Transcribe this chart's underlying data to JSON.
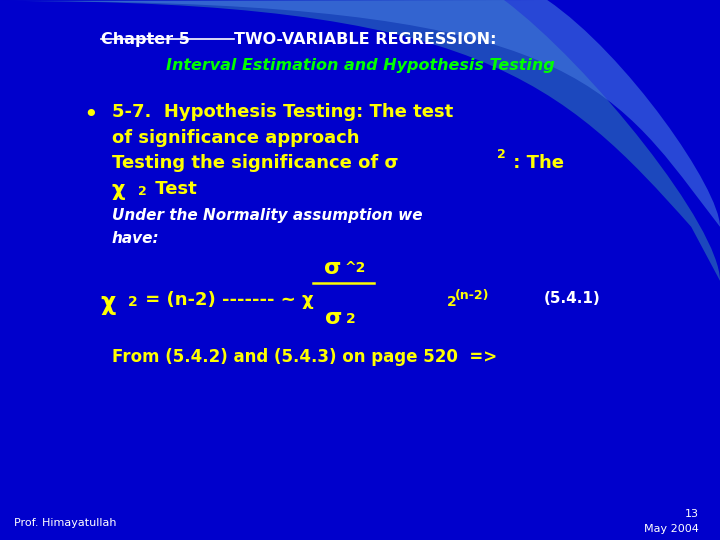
{
  "bg_color": "#0000cc",
  "white": "#ffffff",
  "yellow": "#ffff00",
  "green": "#00ff00",
  "footer_left": "Prof. Himayatullah",
  "footer_right_line1": "13",
  "footer_right_line2": "May 2004"
}
